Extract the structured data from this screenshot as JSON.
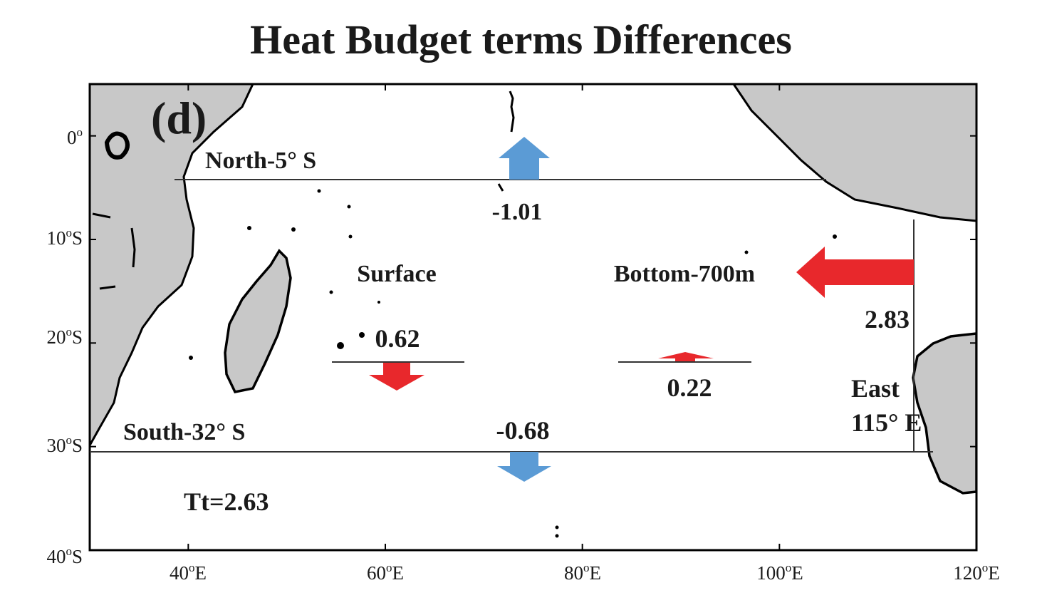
{
  "title": "Heat Budget terms Differences",
  "panel_label": "(d)",
  "colors": {
    "land": "#c8c8c8",
    "coast": "#000000",
    "arrow_red": "#e8282c",
    "arrow_blue": "#5b9bd5",
    "text": "#1a1a1a"
  },
  "axes": {
    "x_ticks": [
      {
        "lon": 40,
        "label": "40",
        "suffix": "E"
      },
      {
        "lon": 60,
        "label": "60",
        "suffix": "E"
      },
      {
        "lon": 80,
        "label": "80",
        "suffix": "E"
      },
      {
        "lon": 100,
        "label": "100",
        "suffix": "E"
      },
      {
        "lon": 120,
        "label": "120",
        "suffix": "E"
      }
    ],
    "y_ticks": [
      {
        "lat": 0,
        "label": "0",
        "suffix": ""
      },
      {
        "lat": -10,
        "label": "10",
        "suffix": "S"
      },
      {
        "lat": -20,
        "label": "20",
        "suffix": "S"
      },
      {
        "lat": -30,
        "label": "30",
        "suffix": "S"
      },
      {
        "lat": -40,
        "label": "40",
        "suffix": "S"
      }
    ],
    "lon_range": [
      30,
      120
    ],
    "lat_range": [
      -40,
      5
    ]
  },
  "boundaries": {
    "north": {
      "label": "North-5°  S",
      "lat": -5,
      "value": "-1.01",
      "direction": "north",
      "color": "blue"
    },
    "south": {
      "label": "South-32°  S",
      "lat": -32,
      "value": "-0.68",
      "direction": "south",
      "color": "blue"
    },
    "east": {
      "label_line1": "East",
      "label_line2": "115°  E",
      "lon": 115,
      "value": "2.83",
      "direction": "west",
      "color": "red"
    }
  },
  "surface": {
    "label": "Surface",
    "value": "0.62",
    "direction": "down",
    "color": "red"
  },
  "bottom": {
    "label": "Bottom-700m",
    "value": "0.22",
    "direction": "up",
    "color": "red"
  },
  "total": {
    "label": "Tt=2.63"
  }
}
